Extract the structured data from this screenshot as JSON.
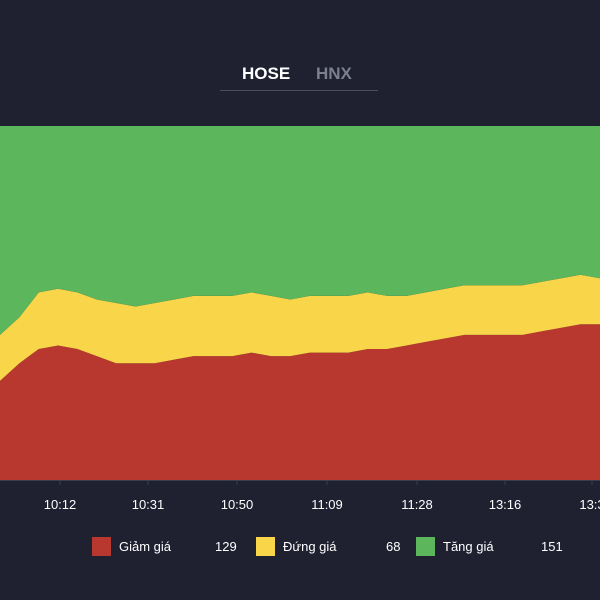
{
  "tabs": {
    "active": "HOSE",
    "items": [
      {
        "label": "HOSE"
      },
      {
        "label": "HNX"
      }
    ]
  },
  "colors": {
    "background": "#1f2130",
    "axis_text": "#ffffff",
    "tab_inactive": "#7c7f8c"
  },
  "chart_data": {
    "type": "area",
    "stacking": "percent",
    "x": [
      "10:00",
      "10:05",
      "10:08",
      "10:12",
      "10:16",
      "10:20",
      "10:24",
      "10:28",
      "10:31",
      "10:35",
      "10:39",
      "10:43",
      "10:46",
      "10:50",
      "10:54",
      "10:58",
      "11:02",
      "11:05",
      "11:09",
      "11:13",
      "11:17",
      "11:21",
      "11:24",
      "11:28",
      "13:04",
      "13:08",
      "13:12",
      "13:16",
      "13:20",
      "13:24",
      "13:28",
      "13:30"
    ],
    "x_tick_labels": [
      "10:12",
      "10:31",
      "10:50",
      "11:09",
      "11:28",
      "13:16",
      "13:3"
    ],
    "ylim": [
      0,
      100
    ],
    "grid": false,
    "legend_position": "bottom",
    "series": [
      {
        "name": "Giảm giá",
        "count": "129",
        "color": "#b8372e",
        "values": [
          28,
          33,
          37,
          38,
          37,
          35,
          33,
          33,
          33,
          34,
          35,
          35,
          35,
          36,
          35,
          35,
          36,
          36,
          36,
          37,
          37,
          38,
          39,
          40,
          41,
          41,
          41,
          41,
          42,
          43,
          44,
          44
        ]
      },
      {
        "name": "Đứng giá",
        "count": "68",
        "color": "#f9d54a",
        "values": [
          13,
          13,
          16,
          16,
          16,
          16,
          17,
          16,
          17,
          17,
          17,
          17,
          17,
          17,
          17,
          16,
          16,
          16,
          16,
          16,
          15,
          14,
          14,
          14,
          14,
          14,
          14,
          14,
          14,
          14,
          14,
          13
        ]
      },
      {
        "name": "Tăng giá",
        "count": "151",
        "color": "#5cb65c",
        "values": [
          59,
          54,
          47,
          46,
          47,
          49,
          50,
          51,
          50,
          49,
          48,
          48,
          48,
          47,
          48,
          49,
          48,
          48,
          48,
          47,
          48,
          48,
          47,
          46,
          45,
          45,
          45,
          45,
          44,
          43,
          42,
          43
        ]
      }
    ]
  }
}
